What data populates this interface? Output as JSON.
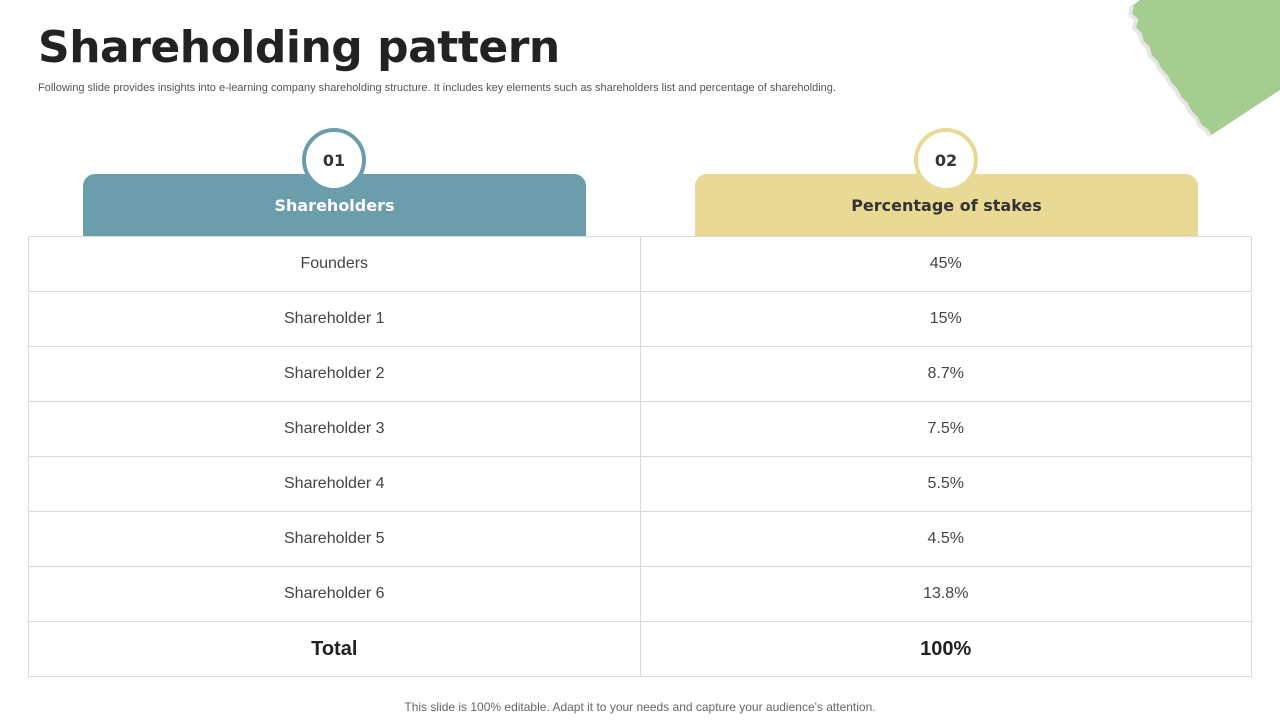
{
  "slide": {
    "title": "Shareholding pattern",
    "subtitle": "Following slide provides insights into e-learning company shareholding structure. It includes  key elements such as shareholders list and percentage of shareholding.",
    "footer": "This slide is 100% editable. Adapt it to your needs and capture your audience's attention."
  },
  "columns": [
    {
      "number": "01",
      "label": "Shareholders",
      "color": "#6c9dab"
    },
    {
      "number": "02",
      "label": "Percentage of stakes",
      "color": "#e8d994"
    }
  ],
  "rows": [
    {
      "name": "Founders",
      "stake": "45%"
    },
    {
      "name": "Shareholder 1",
      "stake": "15%"
    },
    {
      "name": "Shareholder 2",
      "stake": "8.7%"
    },
    {
      "name": "Shareholder 3",
      "stake": "7.5%"
    },
    {
      "name": "Shareholder 4",
      "stake": "5.5%"
    },
    {
      "name": "Shareholder 5",
      "stake": "4.5%"
    },
    {
      "name": "Shareholder 6",
      "stake": "13.8%"
    }
  ],
  "total": {
    "label": "Total",
    "value": "100%"
  },
  "decoration": {
    "corner_color": "#a5cd8f"
  }
}
